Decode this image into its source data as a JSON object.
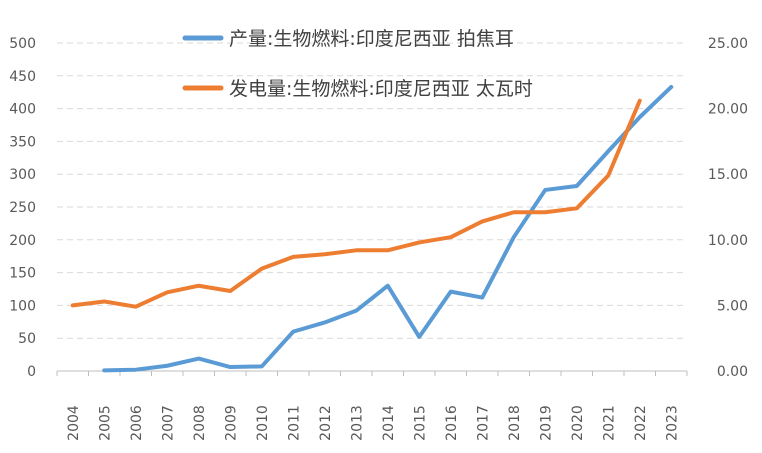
{
  "chart_data": {
    "type": "line",
    "title": "",
    "categories": [
      "2004",
      "2005",
      "2006",
      "2007",
      "2008",
      "2009",
      "2010",
      "2011",
      "2012",
      "2013",
      "2014",
      "2015",
      "2016",
      "2017",
      "2018",
      "2019",
      "2020",
      "2021",
      "2022",
      "2023"
    ],
    "series": [
      {
        "name": "产量:生物燃料:印度尼西亚 拍焦耳",
        "axis": "left",
        "color": "#5b9bd5",
        "values": [
          null,
          1,
          2,
          8,
          19,
          6,
          7,
          60,
          74,
          92,
          130,
          52,
          121,
          112,
          204,
          276,
          282,
          335,
          387,
          433
        ]
      },
      {
        "name": "发电量:生物燃料:印度尼西亚 太瓦时",
        "axis": "right",
        "color": "#ed7d31",
        "values": [
          5.0,
          5.3,
          4.9,
          6.0,
          6.5,
          6.1,
          7.8,
          8.7,
          8.9,
          9.2,
          9.2,
          9.8,
          10.2,
          11.4,
          12.1,
          12.1,
          12.4,
          14.9,
          20.6,
          null
        ]
      }
    ],
    "y_left": {
      "ylim": [
        0,
        500
      ],
      "ticks": [
        0,
        50,
        100,
        150,
        200,
        250,
        300,
        350,
        400,
        450,
        500
      ],
      "tick_labels": [
        "0",
        "50",
        "100",
        "150",
        "200",
        "250",
        "300",
        "350",
        "400",
        "450",
        "500"
      ]
    },
    "y_right": {
      "ylim": [
        0,
        25
      ],
      "ticks": [
        0,
        5,
        10,
        15,
        20,
        25
      ],
      "tick_labels": [
        "0.00",
        "5.00",
        "10.00",
        "15.00",
        "20.00",
        "25.00"
      ]
    },
    "grid": true,
    "legend_position": "top"
  }
}
